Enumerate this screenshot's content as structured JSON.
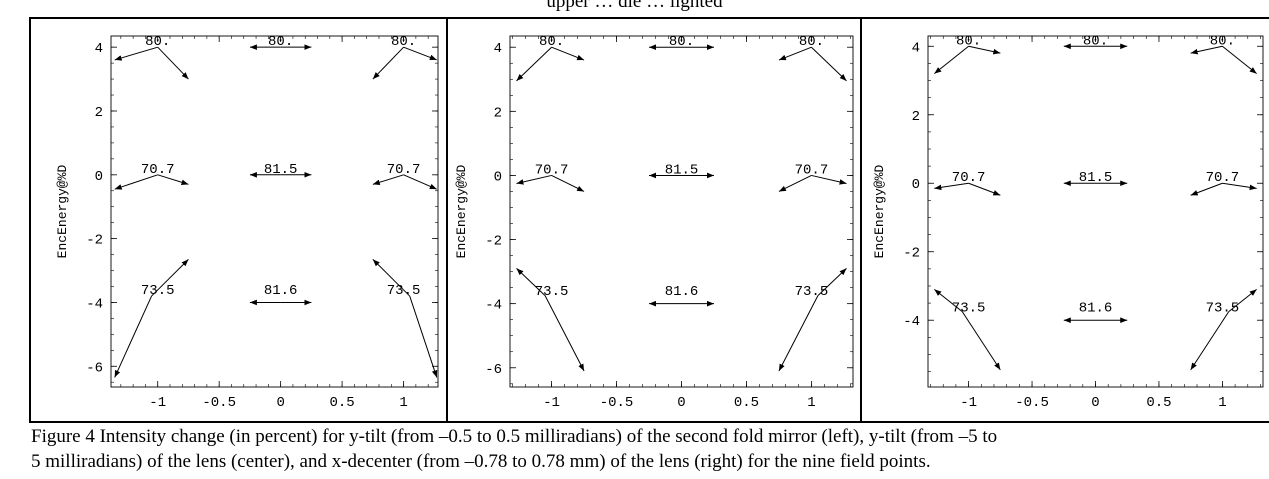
{
  "page": {
    "top_text": "upper … dle … lighted",
    "caption_line1": "Figure 4 Intensity change (in percent) for y-tilt (from –0.5 to 0.5 milliradians) of the second fold mirror (left), y-tilt (from –5 to",
    "caption_line2": "5 milliradians) of the lens (center), and x-decenter (from –0.78 to 0.78 mm) of the lens (right) for the nine field points."
  },
  "chart_data": [
    {
      "type": "scatter",
      "title": "",
      "xlabel": "",
      "ylabel": "EncEnergy@%D",
      "xlim": [
        -1.38,
        1.28
      ],
      "ylim": [
        -6.65,
        4.35
      ],
      "x_ticks": [
        "-1",
        "-0.5",
        "0",
        "0.5",
        "1"
      ],
      "x_tick_values": [
        -1,
        -0.5,
        0,
        0.5,
        1
      ],
      "y_ticks": [
        "4",
        "2",
        "0",
        "-2",
        "-4",
        "-6"
      ],
      "y_tick_values": [
        4,
        2,
        0,
        -2,
        -4,
        -6
      ],
      "labels": [
        {
          "x": -1.0,
          "y": 4.0,
          "text": "80."
        },
        {
          "x": 0.0,
          "y": 4.0,
          "text": "80."
        },
        {
          "x": 1.0,
          "y": 4.0,
          "text": "80."
        },
        {
          "x": -1.0,
          "y": 0.0,
          "text": "70.7"
        },
        {
          "x": 0.0,
          "y": 0.0,
          "text": "81.5"
        },
        {
          "x": 1.0,
          "y": 0.0,
          "text": "70.7"
        },
        {
          "x": -1.0,
          "y": -3.8,
          "text": "73.5"
        },
        {
          "x": 0.0,
          "y": -3.8,
          "text": "81.6"
        },
        {
          "x": 1.0,
          "y": -3.8,
          "text": "73.5"
        }
      ],
      "arrows": [
        {
          "x1": -1.0,
          "y1": 4.0,
          "x2": -1.35,
          "y2": 3.6
        },
        {
          "x1": -1.0,
          "y1": 4.0,
          "x2": -0.75,
          "y2": 3.0
        },
        {
          "x1": 0.0,
          "y1": 4.0,
          "x2": -0.25,
          "y2": 4.0
        },
        {
          "x1": 0.0,
          "y1": 4.0,
          "x2": 0.25,
          "y2": 4.0
        },
        {
          "x1": 1.0,
          "y1": 4.0,
          "x2": 0.75,
          "y2": 3.0
        },
        {
          "x1": 1.0,
          "y1": 4.0,
          "x2": 1.27,
          "y2": 3.6
        },
        {
          "x1": -1.0,
          "y1": 0.0,
          "x2": -1.35,
          "y2": -0.45
        },
        {
          "x1": -1.0,
          "y1": 0.0,
          "x2": -0.75,
          "y2": -0.3
        },
        {
          "x1": 0.0,
          "y1": 0.0,
          "x2": -0.25,
          "y2": 0.0
        },
        {
          "x1": 0.0,
          "y1": 0.0,
          "x2": 0.25,
          "y2": 0.0
        },
        {
          "x1": 1.0,
          "y1": 0.0,
          "x2": 0.75,
          "y2": -0.3
        },
        {
          "x1": 1.0,
          "y1": 0.0,
          "x2": 1.27,
          "y2": -0.45
        },
        {
          "x1": -1.05,
          "y1": -3.8,
          "x2": -1.35,
          "y2": -6.35
        },
        {
          "x1": -1.05,
          "y1": -3.8,
          "x2": -0.75,
          "y2": -2.65
        },
        {
          "x1": 0.0,
          "y1": -4.0,
          "x2": -0.25,
          "y2": -4.0
        },
        {
          "x1": 0.0,
          "y1": -4.0,
          "x2": 0.25,
          "y2": -4.0
        },
        {
          "x1": 1.05,
          "y1": -3.8,
          "x2": 0.75,
          "y2": -2.65
        },
        {
          "x1": 1.05,
          "y1": -3.8,
          "x2": 1.27,
          "y2": -6.35
        }
      ]
    },
    {
      "type": "scatter",
      "title": "",
      "xlabel": "",
      "ylabel": "EncEnergy@%D",
      "xlim": [
        -1.32,
        1.32
      ],
      "ylim": [
        -6.6,
        4.35
      ],
      "x_ticks": [
        "-1",
        "-0.5",
        "0",
        "0.5",
        "1"
      ],
      "x_tick_values": [
        -1,
        -0.5,
        0,
        0.5,
        1
      ],
      "y_ticks": [
        "4",
        "2",
        "0",
        "-2",
        "-4",
        "-6"
      ],
      "y_tick_values": [
        4,
        2,
        0,
        -2,
        -4,
        -6
      ],
      "labels": [
        {
          "x": -1.0,
          "y": 4.0,
          "text": "80."
        },
        {
          "x": 0.0,
          "y": 4.0,
          "text": "80."
        },
        {
          "x": 1.0,
          "y": 4.0,
          "text": "80."
        },
        {
          "x": -1.0,
          "y": 0.0,
          "text": "70.7"
        },
        {
          "x": 0.0,
          "y": 0.0,
          "text": "81.5"
        },
        {
          "x": 1.0,
          "y": 0.0,
          "text": "70.7"
        },
        {
          "x": -1.0,
          "y": -3.8,
          "text": "73.5"
        },
        {
          "x": 0.0,
          "y": -3.8,
          "text": "81.6"
        },
        {
          "x": 1.0,
          "y": -3.8,
          "text": "73.5"
        }
      ],
      "arrows": [
        {
          "x1": -1.0,
          "y1": 4.0,
          "x2": -1.27,
          "y2": 2.95
        },
        {
          "x1": -1.0,
          "y1": 4.0,
          "x2": -0.75,
          "y2": 3.6
        },
        {
          "x1": 0.0,
          "y1": 4.0,
          "x2": -0.25,
          "y2": 4.0
        },
        {
          "x1": 0.0,
          "y1": 4.0,
          "x2": 0.25,
          "y2": 4.0
        },
        {
          "x1": 1.0,
          "y1": 4.0,
          "x2": 0.75,
          "y2": 3.6
        },
        {
          "x1": 1.0,
          "y1": 4.0,
          "x2": 1.27,
          "y2": 2.95
        },
        {
          "x1": -1.0,
          "y1": 0.0,
          "x2": -1.27,
          "y2": -0.25
        },
        {
          "x1": -1.0,
          "y1": 0.0,
          "x2": -0.75,
          "y2": -0.5
        },
        {
          "x1": 0.0,
          "y1": 0.0,
          "x2": -0.25,
          "y2": 0.0
        },
        {
          "x1": 0.0,
          "y1": 0.0,
          "x2": 0.25,
          "y2": 0.0
        },
        {
          "x1": 1.0,
          "y1": 0.0,
          "x2": 0.75,
          "y2": -0.5
        },
        {
          "x1": 1.0,
          "y1": 0.0,
          "x2": 1.27,
          "y2": -0.25
        },
        {
          "x1": -1.05,
          "y1": -3.75,
          "x2": -1.27,
          "y2": -2.9
        },
        {
          "x1": -1.05,
          "y1": -3.75,
          "x2": -0.75,
          "y2": -6.1
        },
        {
          "x1": 0.0,
          "y1": -4.0,
          "x2": -0.25,
          "y2": -4.0
        },
        {
          "x1": 0.0,
          "y1": -4.0,
          "x2": 0.25,
          "y2": -4.0
        },
        {
          "x1": 1.05,
          "y1": -3.75,
          "x2": 0.75,
          "y2": -6.1
        },
        {
          "x1": 1.05,
          "y1": -3.75,
          "x2": 1.27,
          "y2": -2.9
        }
      ]
    },
    {
      "type": "scatter",
      "title": "",
      "xlabel": "",
      "ylabel": "EncEnergy@%D",
      "xlim": [
        -1.32,
        1.32
      ],
      "ylim": [
        -5.95,
        4.3
      ],
      "x_ticks": [
        "-1",
        "-0.5",
        "0",
        "0.5",
        "1"
      ],
      "x_tick_values": [
        -1,
        -0.5,
        0,
        0.5,
        1
      ],
      "y_ticks": [
        "4",
        "2",
        "0",
        "-2",
        "-4"
      ],
      "y_tick_values": [
        4,
        2,
        0,
        -2,
        -4
      ],
      "labels": [
        {
          "x": -1.0,
          "y": 4.0,
          "text": "80."
        },
        {
          "x": 0.0,
          "y": 4.0,
          "text": "80."
        },
        {
          "x": 1.0,
          "y": 4.0,
          "text": "80."
        },
        {
          "x": -1.0,
          "y": 0.0,
          "text": "70.7"
        },
        {
          "x": 0.0,
          "y": 0.0,
          "text": "81.5"
        },
        {
          "x": 1.0,
          "y": 0.0,
          "text": "70.7"
        },
        {
          "x": -1.0,
          "y": -3.8,
          "text": "73.5"
        },
        {
          "x": 0.0,
          "y": -3.8,
          "text": "81.6"
        },
        {
          "x": 1.0,
          "y": -3.8,
          "text": "73.5"
        }
      ],
      "arrows": [
        {
          "x1": -1.0,
          "y1": 4.0,
          "x2": -1.27,
          "y2": 3.2
        },
        {
          "x1": -1.0,
          "y1": 4.0,
          "x2": -0.75,
          "y2": 3.8
        },
        {
          "x1": 0.0,
          "y1": 4.0,
          "x2": -0.25,
          "y2": 4.0
        },
        {
          "x1": 0.0,
          "y1": 4.0,
          "x2": 0.25,
          "y2": 4.0
        },
        {
          "x1": 1.0,
          "y1": 4.0,
          "x2": 0.75,
          "y2": 3.8
        },
        {
          "x1": 1.0,
          "y1": 4.0,
          "x2": 1.27,
          "y2": 3.2
        },
        {
          "x1": -1.0,
          "y1": 0.0,
          "x2": -1.27,
          "y2": -0.15
        },
        {
          "x1": -1.0,
          "y1": 0.0,
          "x2": -0.75,
          "y2": -0.35
        },
        {
          "x1": 0.0,
          "y1": 0.0,
          "x2": -0.25,
          "y2": 0.0
        },
        {
          "x1": 0.0,
          "y1": 0.0,
          "x2": 0.25,
          "y2": 0.0
        },
        {
          "x1": 1.0,
          "y1": 0.0,
          "x2": 0.75,
          "y2": -0.35
        },
        {
          "x1": 1.0,
          "y1": 0.0,
          "x2": 1.27,
          "y2": -0.15
        },
        {
          "x1": -1.05,
          "y1": -3.75,
          "x2": -1.27,
          "y2": -3.1
        },
        {
          "x1": -1.05,
          "y1": -3.75,
          "x2": -0.75,
          "y2": -5.45
        },
        {
          "x1": 0.0,
          "y1": -4.0,
          "x2": -0.25,
          "y2": -4.0
        },
        {
          "x1": 0.0,
          "y1": -4.0,
          "x2": 0.25,
          "y2": -4.0
        },
        {
          "x1": 1.05,
          "y1": -3.75,
          "x2": 0.75,
          "y2": -5.45
        },
        {
          "x1": 1.05,
          "y1": -3.75,
          "x2": 1.27,
          "y2": -3.1
        }
      ]
    }
  ]
}
